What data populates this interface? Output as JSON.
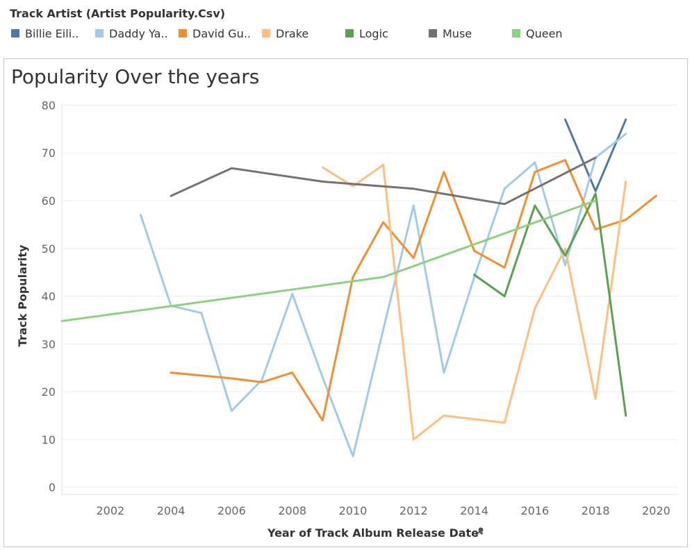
{
  "legend": {
    "title": "Track Artist (Artist Popularity.Csv)",
    "items": [
      {
        "label": "Billie Eili..",
        "color": "#4e79a7"
      },
      {
        "label": "Daddy Ya..",
        "color": "#a0cbe8"
      },
      {
        "label": "David Gu..",
        "color": "#f28e2b"
      },
      {
        "label": "Drake",
        "color": "#ffbe7d"
      },
      {
        "label": "Logic",
        "color": "#59a14f"
      },
      {
        "label": "Muse",
        "color": "#79706e"
      },
      {
        "label": "Queen",
        "color": "#8cd17d"
      }
    ]
  },
  "chart_data": {
    "type": "line",
    "title": "Popularity Over the years",
    "xlabel": "Year of Track Album Release Date",
    "xlabel_icon": "pin-icon",
    "ylabel": "Track Popularity",
    "xlim": [
      2000.4,
      2020.7
    ],
    "ylim": [
      -1.5,
      80.5
    ],
    "x_ticks": [
      2002,
      2004,
      2006,
      2008,
      2010,
      2012,
      2014,
      2016,
      2018,
      2020
    ],
    "y_ticks": [
      0,
      10,
      20,
      30,
      40,
      50,
      60,
      70,
      80
    ],
    "grid": "horizontal",
    "legend_position": "top",
    "series": [
      {
        "name": "Billie Eili..",
        "color": "#4e79a7",
        "points": [
          [
            2017,
            77
          ],
          [
            2018,
            62
          ],
          [
            2019,
            77
          ]
        ]
      },
      {
        "name": "Daddy Ya..",
        "color": "#a0cbe8",
        "points": [
          [
            2003,
            57
          ],
          [
            2004,
            38
          ],
          [
            2005,
            36.5
          ],
          [
            2006,
            16
          ],
          [
            2007,
            22.5
          ],
          [
            2008,
            40.5
          ],
          [
            2009,
            23
          ],
          [
            2010,
            6.5
          ],
          [
            2011,
            33
          ],
          [
            2012,
            59
          ],
          [
            2013,
            24
          ],
          [
            2014,
            44
          ],
          [
            2015,
            62.5
          ],
          [
            2016,
            68
          ],
          [
            2017,
            46.5
          ],
          [
            2018,
            69
          ],
          [
            2019,
            74
          ]
        ]
      },
      {
        "name": "David Gu..",
        "color": "#f28e2b",
        "points": [
          [
            2004,
            24
          ],
          [
            2006,
            22.8
          ],
          [
            2007,
            22
          ],
          [
            2008,
            24
          ],
          [
            2009,
            14
          ],
          [
            2010,
            44
          ],
          [
            2011,
            55.5
          ],
          [
            2012,
            48
          ],
          [
            2013,
            66
          ],
          [
            2014,
            49.5
          ],
          [
            2015,
            46
          ],
          [
            2016,
            66
          ],
          [
            2017,
            68.5
          ],
          [
            2018,
            54
          ],
          [
            2019,
            56
          ],
          [
            2020,
            61
          ]
        ]
      },
      {
        "name": "Drake",
        "color": "#ffbe7d",
        "points": [
          [
            2009,
            67
          ],
          [
            2010,
            63
          ],
          [
            2011,
            67.5
          ],
          [
            2012,
            10
          ],
          [
            2013,
            15
          ],
          [
            2015,
            13.5
          ],
          [
            2016,
            37.5
          ],
          [
            2017,
            50
          ],
          [
            2018,
            18.5
          ],
          [
            2019,
            64
          ]
        ]
      },
      {
        "name": "Logic",
        "color": "#59a14f",
        "points": [
          [
            2014,
            44.5
          ],
          [
            2015,
            40
          ],
          [
            2016,
            59
          ],
          [
            2017,
            48.5
          ],
          [
            2018,
            61.5
          ],
          [
            2019,
            15
          ]
        ]
      },
      {
        "name": "Muse",
        "color": "#79706e",
        "points": [
          [
            2004,
            61
          ],
          [
            2006,
            66.8
          ],
          [
            2009,
            64
          ],
          [
            2012,
            62.5
          ],
          [
            2015,
            59.3
          ],
          [
            2018,
            69
          ]
        ]
      },
      {
        "name": "Queen",
        "color": "#8cd17d",
        "points": [
          [
            2000.4,
            34.8
          ],
          [
            2011,
            44
          ],
          [
            2018,
            60
          ]
        ]
      }
    ]
  }
}
